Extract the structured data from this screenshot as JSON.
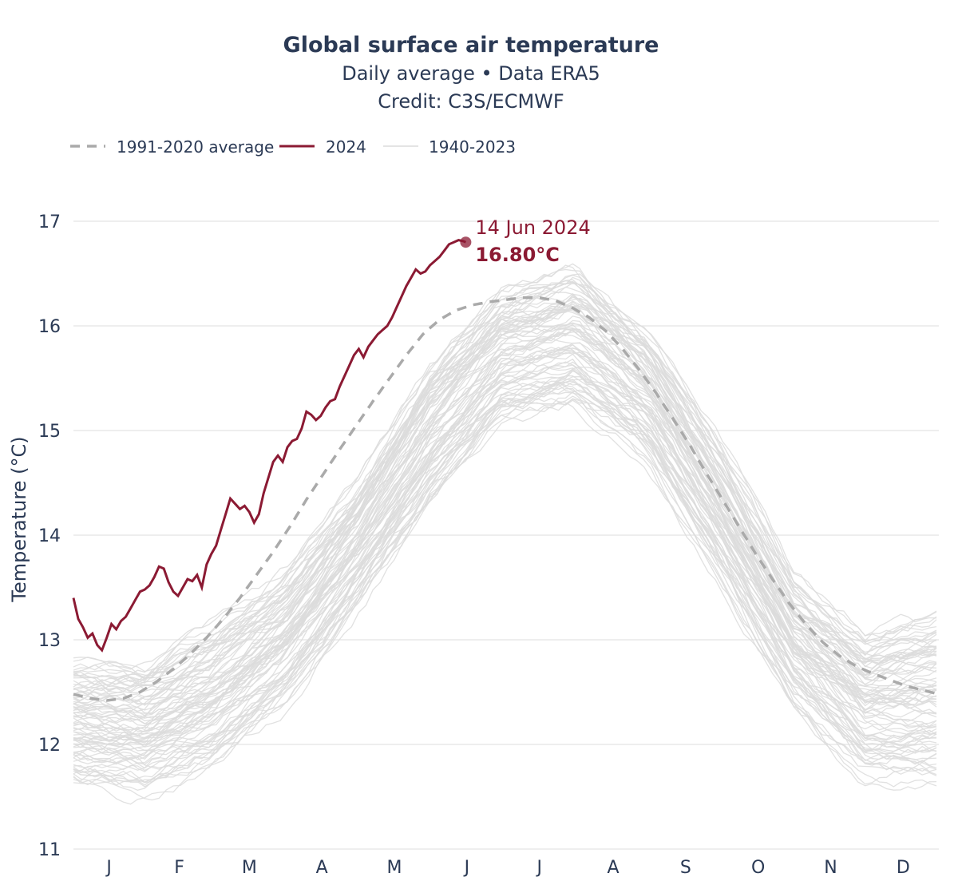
{
  "chart_data": {
    "type": "line",
    "title": "Global surface air temperature",
    "subtitle_1": "Daily average • Data ERA5",
    "subtitle_2": "Credit: C3S/ECMWF",
    "ylabel": "Temperature (°C)",
    "xlabel": "",
    "ylim": [
      11,
      17
    ],
    "y_ticks": [
      "11",
      "12",
      "13",
      "14",
      "15",
      "16",
      "17"
    ],
    "x_tick_labels": [
      "J",
      "F",
      "M",
      "A",
      "M",
      "J",
      "J",
      "A",
      "S",
      "O",
      "N",
      "D"
    ],
    "grid": true,
    "legend_position": "top-left",
    "legend": [
      "1991-2020 average",
      "2024",
      "1940-2023"
    ],
    "colors": {
      "avg": "#aaaaaa",
      "current": "#8b1a33",
      "history": "#dcdcdc"
    },
    "series": [
      {
        "name": "1991-2020 average",
        "style": "dashed",
        "x": [
          1,
          8,
          15,
          22,
          29,
          36,
          43,
          50,
          57,
          64,
          71,
          78,
          85,
          92,
          99,
          106,
          113,
          120,
          127,
          134,
          141,
          148,
          155,
          162,
          169,
          176,
          183,
          190,
          197,
          204,
          211,
          218,
          225,
          232,
          239,
          246,
          253,
          260,
          267,
          274,
          281,
          288,
          295,
          302,
          309,
          316,
          323,
          330,
          337,
          344,
          351,
          358,
          365
        ],
        "y": [
          12.48,
          12.44,
          12.42,
          12.44,
          12.5,
          12.6,
          12.72,
          12.86,
          13.02,
          13.2,
          13.4,
          13.62,
          13.84,
          14.08,
          14.34,
          14.58,
          14.82,
          15.05,
          15.28,
          15.5,
          15.72,
          15.92,
          16.06,
          16.15,
          16.2,
          16.23,
          16.25,
          16.27,
          16.27,
          16.24,
          16.17,
          16.08,
          15.95,
          15.78,
          15.58,
          15.36,
          15.12,
          14.87,
          14.6,
          14.34,
          14.08,
          13.82,
          13.58,
          13.35,
          13.15,
          12.98,
          12.85,
          12.75,
          12.68,
          12.62,
          12.56,
          12.52,
          12.48
        ]
      },
      {
        "name": "2024",
        "style": "solid",
        "x": [
          1,
          3,
          5,
          7,
          9,
          11,
          13,
          15,
          17,
          19,
          21,
          23,
          25,
          27,
          29,
          31,
          33,
          35,
          37,
          39,
          41,
          43,
          45,
          47,
          49,
          51,
          53,
          55,
          57,
          59,
          61,
          63,
          65,
          67,
          69,
          71,
          73,
          75,
          77,
          79,
          81,
          83,
          85,
          87,
          89,
          91,
          93,
          95,
          97,
          99,
          101,
          103,
          105,
          107,
          109,
          111,
          113,
          115,
          117,
          119,
          121,
          123,
          125,
          127,
          129,
          131,
          133,
          135,
          137,
          139,
          141,
          143,
          145,
          147,
          149,
          151,
          153,
          155,
          157,
          159,
          161,
          163,
          165,
          166
        ],
        "y": [
          13.4,
          13.2,
          13.12,
          13.02,
          13.06,
          12.95,
          12.9,
          13.02,
          13.15,
          13.1,
          13.18,
          13.22,
          13.3,
          13.38,
          13.46,
          13.48,
          13.52,
          13.6,
          13.7,
          13.68,
          13.55,
          13.46,
          13.42,
          13.5,
          13.58,
          13.56,
          13.62,
          13.5,
          13.72,
          13.82,
          13.9,
          14.05,
          14.2,
          14.35,
          14.3,
          14.25,
          14.28,
          14.22,
          14.12,
          14.2,
          14.4,
          14.55,
          14.7,
          14.76,
          14.7,
          14.84,
          14.9,
          14.92,
          15.02,
          15.18,
          15.15,
          15.1,
          15.14,
          15.22,
          15.28,
          15.3,
          15.42,
          15.52,
          15.62,
          15.72,
          15.78,
          15.7,
          15.8,
          15.86,
          15.92,
          15.96,
          16.0,
          16.08,
          16.18,
          16.28,
          16.38,
          16.46,
          16.54,
          16.5,
          16.52,
          16.58,
          16.62,
          16.66,
          16.72,
          16.78,
          16.8,
          16.82,
          16.81,
          16.8
        ]
      },
      {
        "name": "1940-2023",
        "style": "solid",
        "note_only_envelope": "",
        "x": [
          1,
          31,
          59,
          90,
          120,
          151,
          181,
          212,
          243,
          273,
          304,
          334,
          365
        ],
        "y_low": [
          11.45,
          11.4,
          11.6,
          12.2,
          13.1,
          14.1,
          14.9,
          15.0,
          14.5,
          13.4,
          12.2,
          11.5,
          11.4
        ],
        "y_high": [
          13.0,
          12.95,
          13.35,
          13.85,
          14.7,
          15.9,
          16.6,
          16.85,
          16.2,
          15.1,
          13.8,
          13.3,
          13.55
        ]
      }
    ],
    "annotation": {
      "date_label": "14 Jun 2024",
      "value_label": "16.80°C",
      "x": 166,
      "y": 16.8
    }
  }
}
